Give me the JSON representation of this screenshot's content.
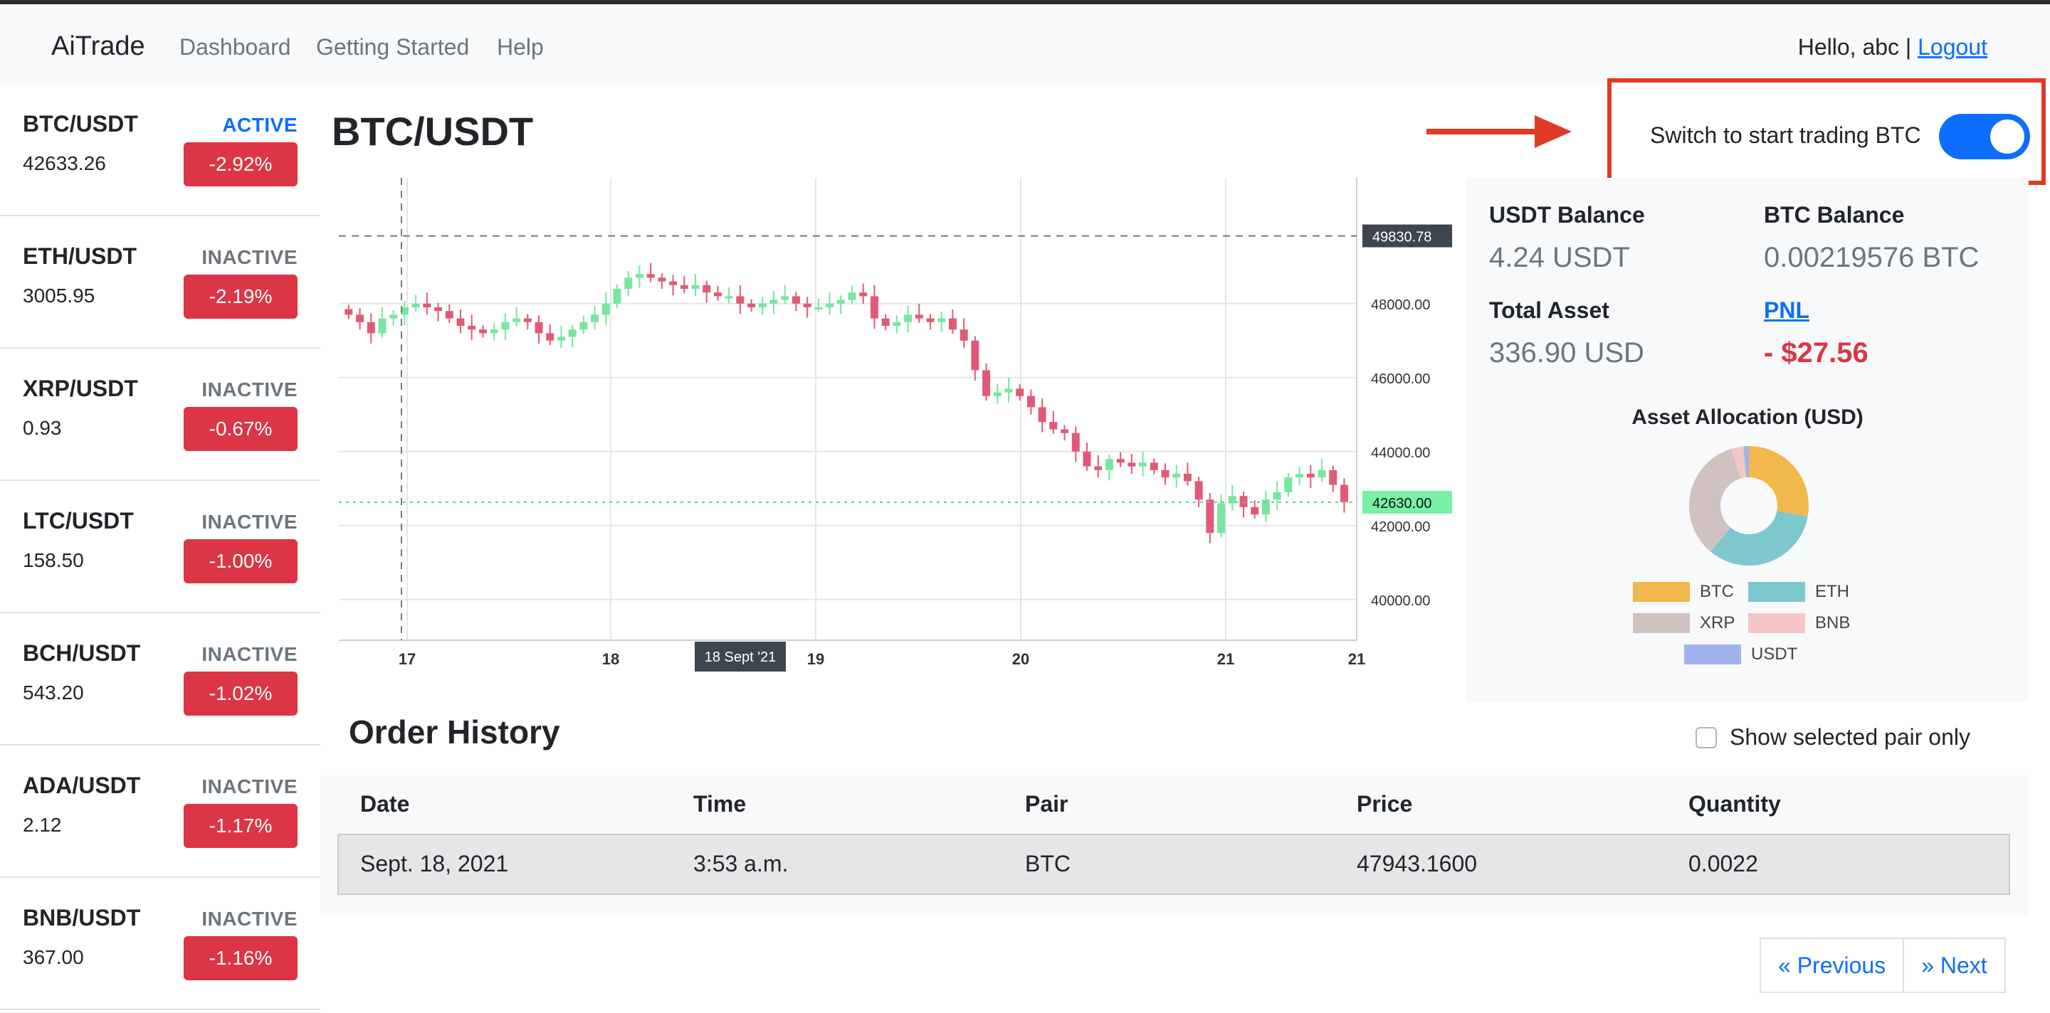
{
  "navbar": {
    "brand": "AiTrade",
    "links": [
      "Dashboard",
      "Getting Started",
      "Help"
    ],
    "greeting": "Hello, abc |",
    "logout": "Logout"
  },
  "pairs": [
    {
      "name": "BTC/USDT",
      "status": "ACTIVE",
      "price": "42633.26",
      "change": "-2.92%"
    },
    {
      "name": "ETH/USDT",
      "status": "INACTIVE",
      "price": "3005.95",
      "change": "-2.19%"
    },
    {
      "name": "XRP/USDT",
      "status": "INACTIVE",
      "price": "0.93",
      "change": "-0.67%"
    },
    {
      "name": "LTC/USDT",
      "status": "INACTIVE",
      "price": "158.50",
      "change": "-1.00%"
    },
    {
      "name": "BCH/USDT",
      "status": "INACTIVE",
      "price": "543.20",
      "change": "-1.02%"
    },
    {
      "name": "ADA/USDT",
      "status": "INACTIVE",
      "price": "2.12",
      "change": "-1.17%"
    },
    {
      "name": "BNB/USDT",
      "status": "INACTIVE",
      "price": "367.00",
      "change": "-1.16%"
    }
  ],
  "main": {
    "title": "BTC/USDT",
    "switch_label": "Switch to start trading BTC",
    "switch_on": true
  },
  "balances": {
    "usdt_label": "USDT Balance",
    "usdt_value": "4.24 USDT",
    "btc_label": "BTC Balance",
    "btc_value": "0.00219576 BTC",
    "total_label": "Total Asset",
    "total_value": "336.90 USD",
    "pnl_label": "PNL",
    "pnl_value": "- $27.56"
  },
  "allocation": {
    "title": "Asset Allocation (USD)",
    "slices": [
      {
        "label": "BTC",
        "value": 27.8,
        "color": "#f2b84b"
      },
      {
        "label": "ETH",
        "value": 33.3,
        "color": "#7dc8cc"
      },
      {
        "label": "XRP",
        "value": 34.2,
        "color": "#cfc2c0"
      },
      {
        "label": "BNB",
        "value": 3.2,
        "color": "#f5c6c6"
      },
      {
        "label": "USDT",
        "value": 1.5,
        "color": "#9fb3ec"
      }
    ]
  },
  "chart_data": {
    "type": "candlestick",
    "x_ticks": [
      "17",
      "18",
      "19",
      "20",
      "21",
      "21"
    ],
    "y_ticks": [
      "48000.00",
      "46000.00",
      "44000.00",
      "42000.00",
      "40000.00"
    ],
    "ylim": [
      38900,
      51400
    ],
    "crosshair_date": "18 Sept '21",
    "crosshair_price": "49830.78",
    "last_price": "42630.00",
    "colors": {
      "up": "#78e6a0",
      "down": "#e05a78",
      "grid": "#e6e6e6",
      "label_bg": "#3d4550",
      "last_bg": "#78f0a8"
    },
    "close_path": [
      47700,
      47500,
      47200,
      47600,
      47700,
      47900,
      48000,
      47900,
      47800,
      47600,
      47400,
      47300,
      47200,
      47300,
      47500,
      47600,
      47500,
      47200,
      47000,
      47100,
      47300,
      47500,
      47700,
      48000,
      48400,
      48700,
      48800,
      48700,
      48600,
      48500,
      48400,
      48500,
      48300,
      48200,
      48200,
      48000,
      47900,
      48000,
      48100,
      48200,
      48000,
      47900,
      47900,
      48000,
      48100,
      48300,
      48200,
      47600,
      47400,
      47500,
      47700,
      47600,
      47500,
      47600,
      47300,
      47000,
      46200,
      45500,
      45600,
      45700,
      45500,
      45200,
      44800,
      44600,
      44500,
      44000,
      43600,
      43500,
      43800,
      43700,
      43600,
      43700,
      43500,
      43300,
      43400,
      43200,
      42700,
      41800,
      42600,
      42800,
      42500,
      42300,
      42700,
      42900,
      43300,
      43400,
      43300,
      43500,
      43100,
      42630
    ]
  },
  "orders": {
    "title": "Order History",
    "filter_label": "Show selected pair only",
    "columns": [
      "Date",
      "Time",
      "Pair",
      "Price",
      "Quantity"
    ],
    "rows": [
      {
        "date": "Sept. 18, 2021",
        "time": "3:53 a.m.",
        "pair": "BTC",
        "price": "47943.1600",
        "quantity": "0.0022"
      }
    ]
  },
  "pagination": {
    "previous": "« Previous",
    "next": "» Next"
  }
}
